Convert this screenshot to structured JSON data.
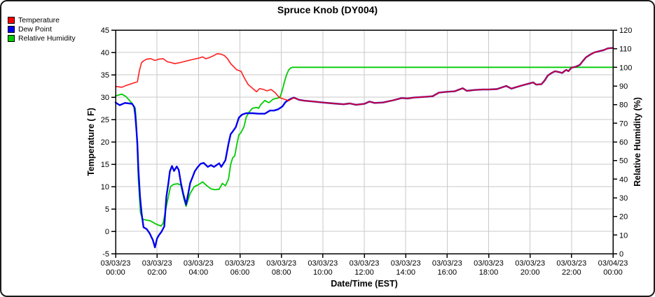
{
  "title": "Spruce Knob (DY004)",
  "legend": [
    {
      "label": "Temperature",
      "color": "#ff0000"
    },
    {
      "label": "Dew Point",
      "color": "#0000ee"
    },
    {
      "label": "Relative Humidity",
      "color": "#00cc00"
    }
  ],
  "colors": {
    "grid": "#c9c9c9",
    "axis": "#000000",
    "temperature": "#ff0000",
    "dew_point": "#0000ee",
    "humidity": "#00cc00"
  },
  "chart_data": {
    "type": "line",
    "title": "Spruce Knob (DY004)",
    "xlabel": "Date/Time (EST)",
    "ylabel_left": "Temperature ( F)",
    "ylabel_right": "Relative Humidity (%)",
    "x_unit": "hours since 03/03/23 00:00 EST",
    "xlim": [
      0,
      24
    ],
    "ylim_left": [
      -5,
      45
    ],
    "ylim_right": [
      0,
      120
    ],
    "grid": true,
    "legend_position": "top-left",
    "y_ticks_left": [
      45,
      40,
      35,
      30,
      25,
      20,
      15,
      10,
      5,
      0,
      -5
    ],
    "y_ticks_right": [
      120,
      110,
      100,
      90,
      80,
      70,
      60,
      50,
      40,
      30,
      20,
      10,
      0
    ],
    "x_ticks": [
      {
        "hour": 0,
        "date": "03/03/23",
        "time": "00:00"
      },
      {
        "hour": 2,
        "date": "03/03/23",
        "time": "02:00"
      },
      {
        "hour": 4,
        "date": "03/03/23",
        "time": "04:00"
      },
      {
        "hour": 6,
        "date": "03/03/23",
        "time": "06:00"
      },
      {
        "hour": 8,
        "date": "03/03/23",
        "time": "08:00"
      },
      {
        "hour": 10,
        "date": "03/03/23",
        "time": "10:00"
      },
      {
        "hour": 12,
        "date": "03/03/23",
        "time": "12:00"
      },
      {
        "hour": 14,
        "date": "03/03/23",
        "time": "14:00"
      },
      {
        "hour": 16,
        "date": "03/03/23",
        "time": "16:00"
      },
      {
        "hour": 18,
        "date": "03/03/23",
        "time": "18:00"
      },
      {
        "hour": 20,
        "date": "03/03/23",
        "time": "20:00"
      },
      {
        "hour": 22,
        "date": "03/03/23",
        "time": "22:00"
      },
      {
        "hour": 24,
        "date": "03/04/23",
        "time": "00:00"
      }
    ],
    "series": [
      {
        "name": "Temperature",
        "axis": "left",
        "color": "#ff0000",
        "unit": "F",
        "points": [
          [
            0,
            32.4
          ],
          [
            0.3,
            32.2
          ],
          [
            0.5,
            32.6
          ],
          [
            0.7,
            32.9
          ],
          [
            0.95,
            33.3
          ],
          [
            1.05,
            33.4
          ],
          [
            1.15,
            35.9
          ],
          [
            1.25,
            37.7
          ],
          [
            1.35,
            38.1
          ],
          [
            1.5,
            38.5
          ],
          [
            1.7,
            38.6
          ],
          [
            1.9,
            38.2
          ],
          [
            2.1,
            38.5
          ],
          [
            2.3,
            38.6
          ],
          [
            2.5,
            37.9
          ],
          [
            2.7,
            37.7
          ],
          [
            2.85,
            37.5
          ],
          [
            3.1,
            37.7
          ],
          [
            3.35,
            38.0
          ],
          [
            3.6,
            38.3
          ],
          [
            3.8,
            38.5
          ],
          [
            4.0,
            38.7
          ],
          [
            4.2,
            39.0
          ],
          [
            4.35,
            38.6
          ],
          [
            4.5,
            38.8
          ],
          [
            4.7,
            39.2
          ],
          [
            4.9,
            39.7
          ],
          [
            5.1,
            39.6
          ],
          [
            5.25,
            39.3
          ],
          [
            5.4,
            38.6
          ],
          [
            5.55,
            37.5
          ],
          [
            5.7,
            36.8
          ],
          [
            5.85,
            36.1
          ],
          [
            6.05,
            35.8
          ],
          [
            6.2,
            34.4
          ],
          [
            6.4,
            32.8
          ],
          [
            6.55,
            32.2
          ],
          [
            6.8,
            31.2
          ],
          [
            6.95,
            31.9
          ],
          [
            7.15,
            31.7
          ],
          [
            7.3,
            31.4
          ],
          [
            7.5,
            31.7
          ],
          [
            7.7,
            31.0
          ],
          [
            7.9,
            29.9
          ],
          [
            8.1,
            29.6
          ],
          [
            8.35,
            29.2
          ],
          [
            8.6,
            29.9
          ],
          [
            8.85,
            29.4
          ],
          [
            9.1,
            29.2
          ],
          [
            9.6,
            29.0
          ],
          [
            10.0,
            28.8
          ],
          [
            10.5,
            28.6
          ],
          [
            11.0,
            28.4
          ],
          [
            11.3,
            28.6
          ],
          [
            11.6,
            28.3
          ],
          [
            12.0,
            28.5
          ],
          [
            12.25,
            29.0
          ],
          [
            12.5,
            28.7
          ],
          [
            12.9,
            28.8
          ],
          [
            13.4,
            29.3
          ],
          [
            13.8,
            29.8
          ],
          [
            14.1,
            29.7
          ],
          [
            14.4,
            29.9
          ],
          [
            15.0,
            30.1
          ],
          [
            15.3,
            30.2
          ],
          [
            15.6,
            31.0
          ],
          [
            16.0,
            31.2
          ],
          [
            16.35,
            31.3
          ],
          [
            16.75,
            32.0
          ],
          [
            16.95,
            31.4
          ],
          [
            17.3,
            31.6
          ],
          [
            17.7,
            31.7
          ],
          [
            18.0,
            31.7
          ],
          [
            18.4,
            31.8
          ],
          [
            18.85,
            32.5
          ],
          [
            19.1,
            31.9
          ],
          [
            19.45,
            32.4
          ],
          [
            19.75,
            32.8
          ],
          [
            20.0,
            33.1
          ],
          [
            20.15,
            33.3
          ],
          [
            20.3,
            32.8
          ],
          [
            20.55,
            32.9
          ],
          [
            20.7,
            33.7
          ],
          [
            20.85,
            34.8
          ],
          [
            21.0,
            35.3
          ],
          [
            21.2,
            35.8
          ],
          [
            21.4,
            35.6
          ],
          [
            21.55,
            35.4
          ],
          [
            21.65,
            35.8
          ],
          [
            21.75,
            36.1
          ],
          [
            21.85,
            35.8
          ],
          [
            22.0,
            36.6
          ],
          [
            22.2,
            36.8
          ],
          [
            22.4,
            37.2
          ],
          [
            22.55,
            38.1
          ],
          [
            22.7,
            38.9
          ],
          [
            22.9,
            39.5
          ],
          [
            23.1,
            40.0
          ],
          [
            23.35,
            40.3
          ],
          [
            23.55,
            40.5
          ],
          [
            23.75,
            40.9
          ],
          [
            24.0,
            41.0
          ]
        ]
      },
      {
        "name": "Dew Point",
        "axis": "left",
        "color": "#0000ee",
        "unit": "F",
        "points": [
          [
            0,
            28.8
          ],
          [
            0.2,
            28.2
          ],
          [
            0.45,
            28.7
          ],
          [
            0.65,
            28.6
          ],
          [
            0.8,
            28.5
          ],
          [
            0.9,
            27.8
          ],
          [
            0.95,
            26.0
          ],
          [
            1.0,
            23.0
          ],
          [
            1.05,
            19.6
          ],
          [
            1.1,
            14.0
          ],
          [
            1.18,
            7.7
          ],
          [
            1.26,
            3.8
          ],
          [
            1.35,
            0.9
          ],
          [
            1.5,
            0.5
          ],
          [
            1.65,
            -0.5
          ],
          [
            1.8,
            -2.0
          ],
          [
            1.9,
            -3.6
          ],
          [
            2.0,
            -1.6
          ],
          [
            2.1,
            -0.8
          ],
          [
            2.2,
            -0.2
          ],
          [
            2.35,
            1.1
          ],
          [
            2.45,
            7.7
          ],
          [
            2.55,
            10.8
          ],
          [
            2.62,
            13.4
          ],
          [
            2.72,
            14.6
          ],
          [
            2.82,
            13.5
          ],
          [
            2.95,
            14.5
          ],
          [
            3.05,
            13.7
          ],
          [
            3.15,
            10.8
          ],
          [
            3.27,
            8.3
          ],
          [
            3.4,
            6.0
          ],
          [
            3.5,
            8.3
          ],
          [
            3.6,
            10.8
          ],
          [
            3.72,
            12.2
          ],
          [
            3.82,
            13.4
          ],
          [
            3.95,
            14.3
          ],
          [
            4.1,
            15.1
          ],
          [
            4.25,
            15.3
          ],
          [
            4.45,
            14.4
          ],
          [
            4.6,
            14.8
          ],
          [
            4.75,
            14.4
          ],
          [
            4.9,
            14.9
          ],
          [
            5.0,
            15.2
          ],
          [
            5.1,
            14.4
          ],
          [
            5.3,
            15.9
          ],
          [
            5.45,
            19.6
          ],
          [
            5.55,
            21.7
          ],
          [
            5.65,
            22.3
          ],
          [
            5.8,
            23.3
          ],
          [
            5.95,
            25.4
          ],
          [
            6.1,
            26.1
          ],
          [
            6.3,
            26.4
          ],
          [
            6.6,
            26.4
          ],
          [
            6.9,
            26.3
          ],
          [
            7.2,
            26.3
          ],
          [
            7.45,
            27.0
          ],
          [
            7.65,
            27.0
          ],
          [
            7.85,
            27.3
          ],
          [
            8.05,
            27.9
          ],
          [
            8.2,
            28.9
          ],
          [
            8.4,
            29.5
          ],
          [
            8.6,
            29.9
          ],
          [
            8.85,
            29.4
          ],
          [
            9.1,
            29.2
          ],
          [
            9.6,
            29.0
          ],
          [
            10.0,
            28.8
          ],
          [
            10.5,
            28.6
          ],
          [
            11.0,
            28.4
          ],
          [
            11.3,
            28.6
          ],
          [
            11.6,
            28.3
          ],
          [
            12.0,
            28.5
          ],
          [
            12.25,
            29.0
          ],
          [
            12.5,
            28.7
          ],
          [
            12.9,
            28.8
          ],
          [
            13.4,
            29.3
          ],
          [
            13.8,
            29.8
          ],
          [
            14.1,
            29.7
          ],
          [
            14.4,
            29.9
          ],
          [
            15.0,
            30.1
          ],
          [
            15.3,
            30.2
          ],
          [
            15.6,
            31.0
          ],
          [
            16.0,
            31.2
          ],
          [
            16.35,
            31.3
          ],
          [
            16.75,
            32.0
          ],
          [
            16.95,
            31.4
          ],
          [
            17.3,
            31.6
          ],
          [
            17.7,
            31.7
          ],
          [
            18.0,
            31.7
          ],
          [
            18.4,
            31.8
          ],
          [
            18.85,
            32.5
          ],
          [
            19.1,
            31.9
          ],
          [
            19.45,
            32.4
          ],
          [
            19.75,
            32.8
          ],
          [
            20.0,
            33.1
          ],
          [
            20.15,
            33.3
          ],
          [
            20.3,
            32.8
          ],
          [
            20.55,
            32.9
          ],
          [
            20.7,
            33.7
          ],
          [
            20.85,
            34.8
          ],
          [
            21.0,
            35.3
          ],
          [
            21.2,
            35.8
          ],
          [
            21.4,
            35.6
          ],
          [
            21.55,
            35.4
          ],
          [
            21.65,
            35.8
          ],
          [
            21.75,
            36.1
          ],
          [
            21.85,
            35.8
          ],
          [
            22.0,
            36.6
          ],
          [
            22.2,
            36.8
          ],
          [
            22.4,
            37.2
          ],
          [
            22.55,
            38.1
          ],
          [
            22.7,
            38.9
          ],
          [
            22.9,
            39.5
          ],
          [
            23.1,
            40.0
          ],
          [
            23.35,
            40.3
          ],
          [
            23.55,
            40.5
          ],
          [
            23.75,
            40.9
          ],
          [
            24.0,
            41.0
          ]
        ]
      },
      {
        "name": "Relative Humidity",
        "axis": "right",
        "color": "#00cc00",
        "unit": "%",
        "points": [
          [
            0,
            84.7
          ],
          [
            0.3,
            85.6
          ],
          [
            0.5,
            84.3
          ],
          [
            0.65,
            82.5
          ],
          [
            0.8,
            80.6
          ],
          [
            0.95,
            78.0
          ],
          [
            1.0,
            70.0
          ],
          [
            1.05,
            55.0
          ],
          [
            1.1,
            40.0
          ],
          [
            1.2,
            22.0
          ],
          [
            1.3,
            18.5
          ],
          [
            1.5,
            18.0
          ],
          [
            1.7,
            17.5
          ],
          [
            1.9,
            16.2
          ],
          [
            2.05,
            15.4
          ],
          [
            2.2,
            14.8
          ],
          [
            2.3,
            16.5
          ],
          [
            2.45,
            25.4
          ],
          [
            2.55,
            30.7
          ],
          [
            2.65,
            36.0
          ],
          [
            2.8,
            37.2
          ],
          [
            3.0,
            37.5
          ],
          [
            3.15,
            36.8
          ],
          [
            3.3,
            29.3
          ],
          [
            3.4,
            25.4
          ],
          [
            3.6,
            32.4
          ],
          [
            3.8,
            36.0
          ],
          [
            4.0,
            37.0
          ],
          [
            4.2,
            38.5
          ],
          [
            4.4,
            36.5
          ],
          [
            4.6,
            34.8
          ],
          [
            4.8,
            34.3
          ],
          [
            5.0,
            34.6
          ],
          [
            5.15,
            37.7
          ],
          [
            5.3,
            36.5
          ],
          [
            5.45,
            40.0
          ],
          [
            5.55,
            47.8
          ],
          [
            5.65,
            51.4
          ],
          [
            5.75,
            52.5
          ],
          [
            5.85,
            58.6
          ],
          [
            5.95,
            63.8
          ],
          [
            6.05,
            65.0
          ],
          [
            6.2,
            68.2
          ],
          [
            6.3,
            73.2
          ],
          [
            6.45,
            76.1
          ],
          [
            6.6,
            78.0
          ],
          [
            6.8,
            78.5
          ],
          [
            6.9,
            78.0
          ],
          [
            7.0,
            79.9
          ],
          [
            7.2,
            82.2
          ],
          [
            7.4,
            81.0
          ],
          [
            7.6,
            82.9
          ],
          [
            7.85,
            83.5
          ],
          [
            7.95,
            84.4
          ],
          [
            8.05,
            87.9
          ],
          [
            8.15,
            92.3
          ],
          [
            8.25,
            96.0
          ],
          [
            8.35,
            98.5
          ],
          [
            8.45,
            99.7
          ],
          [
            8.55,
            100.0
          ],
          [
            10,
            100
          ],
          [
            12,
            100
          ],
          [
            14,
            100
          ],
          [
            16,
            100
          ],
          [
            18,
            100
          ],
          [
            20,
            100
          ],
          [
            22,
            100
          ],
          [
            24,
            100
          ]
        ]
      }
    ]
  }
}
